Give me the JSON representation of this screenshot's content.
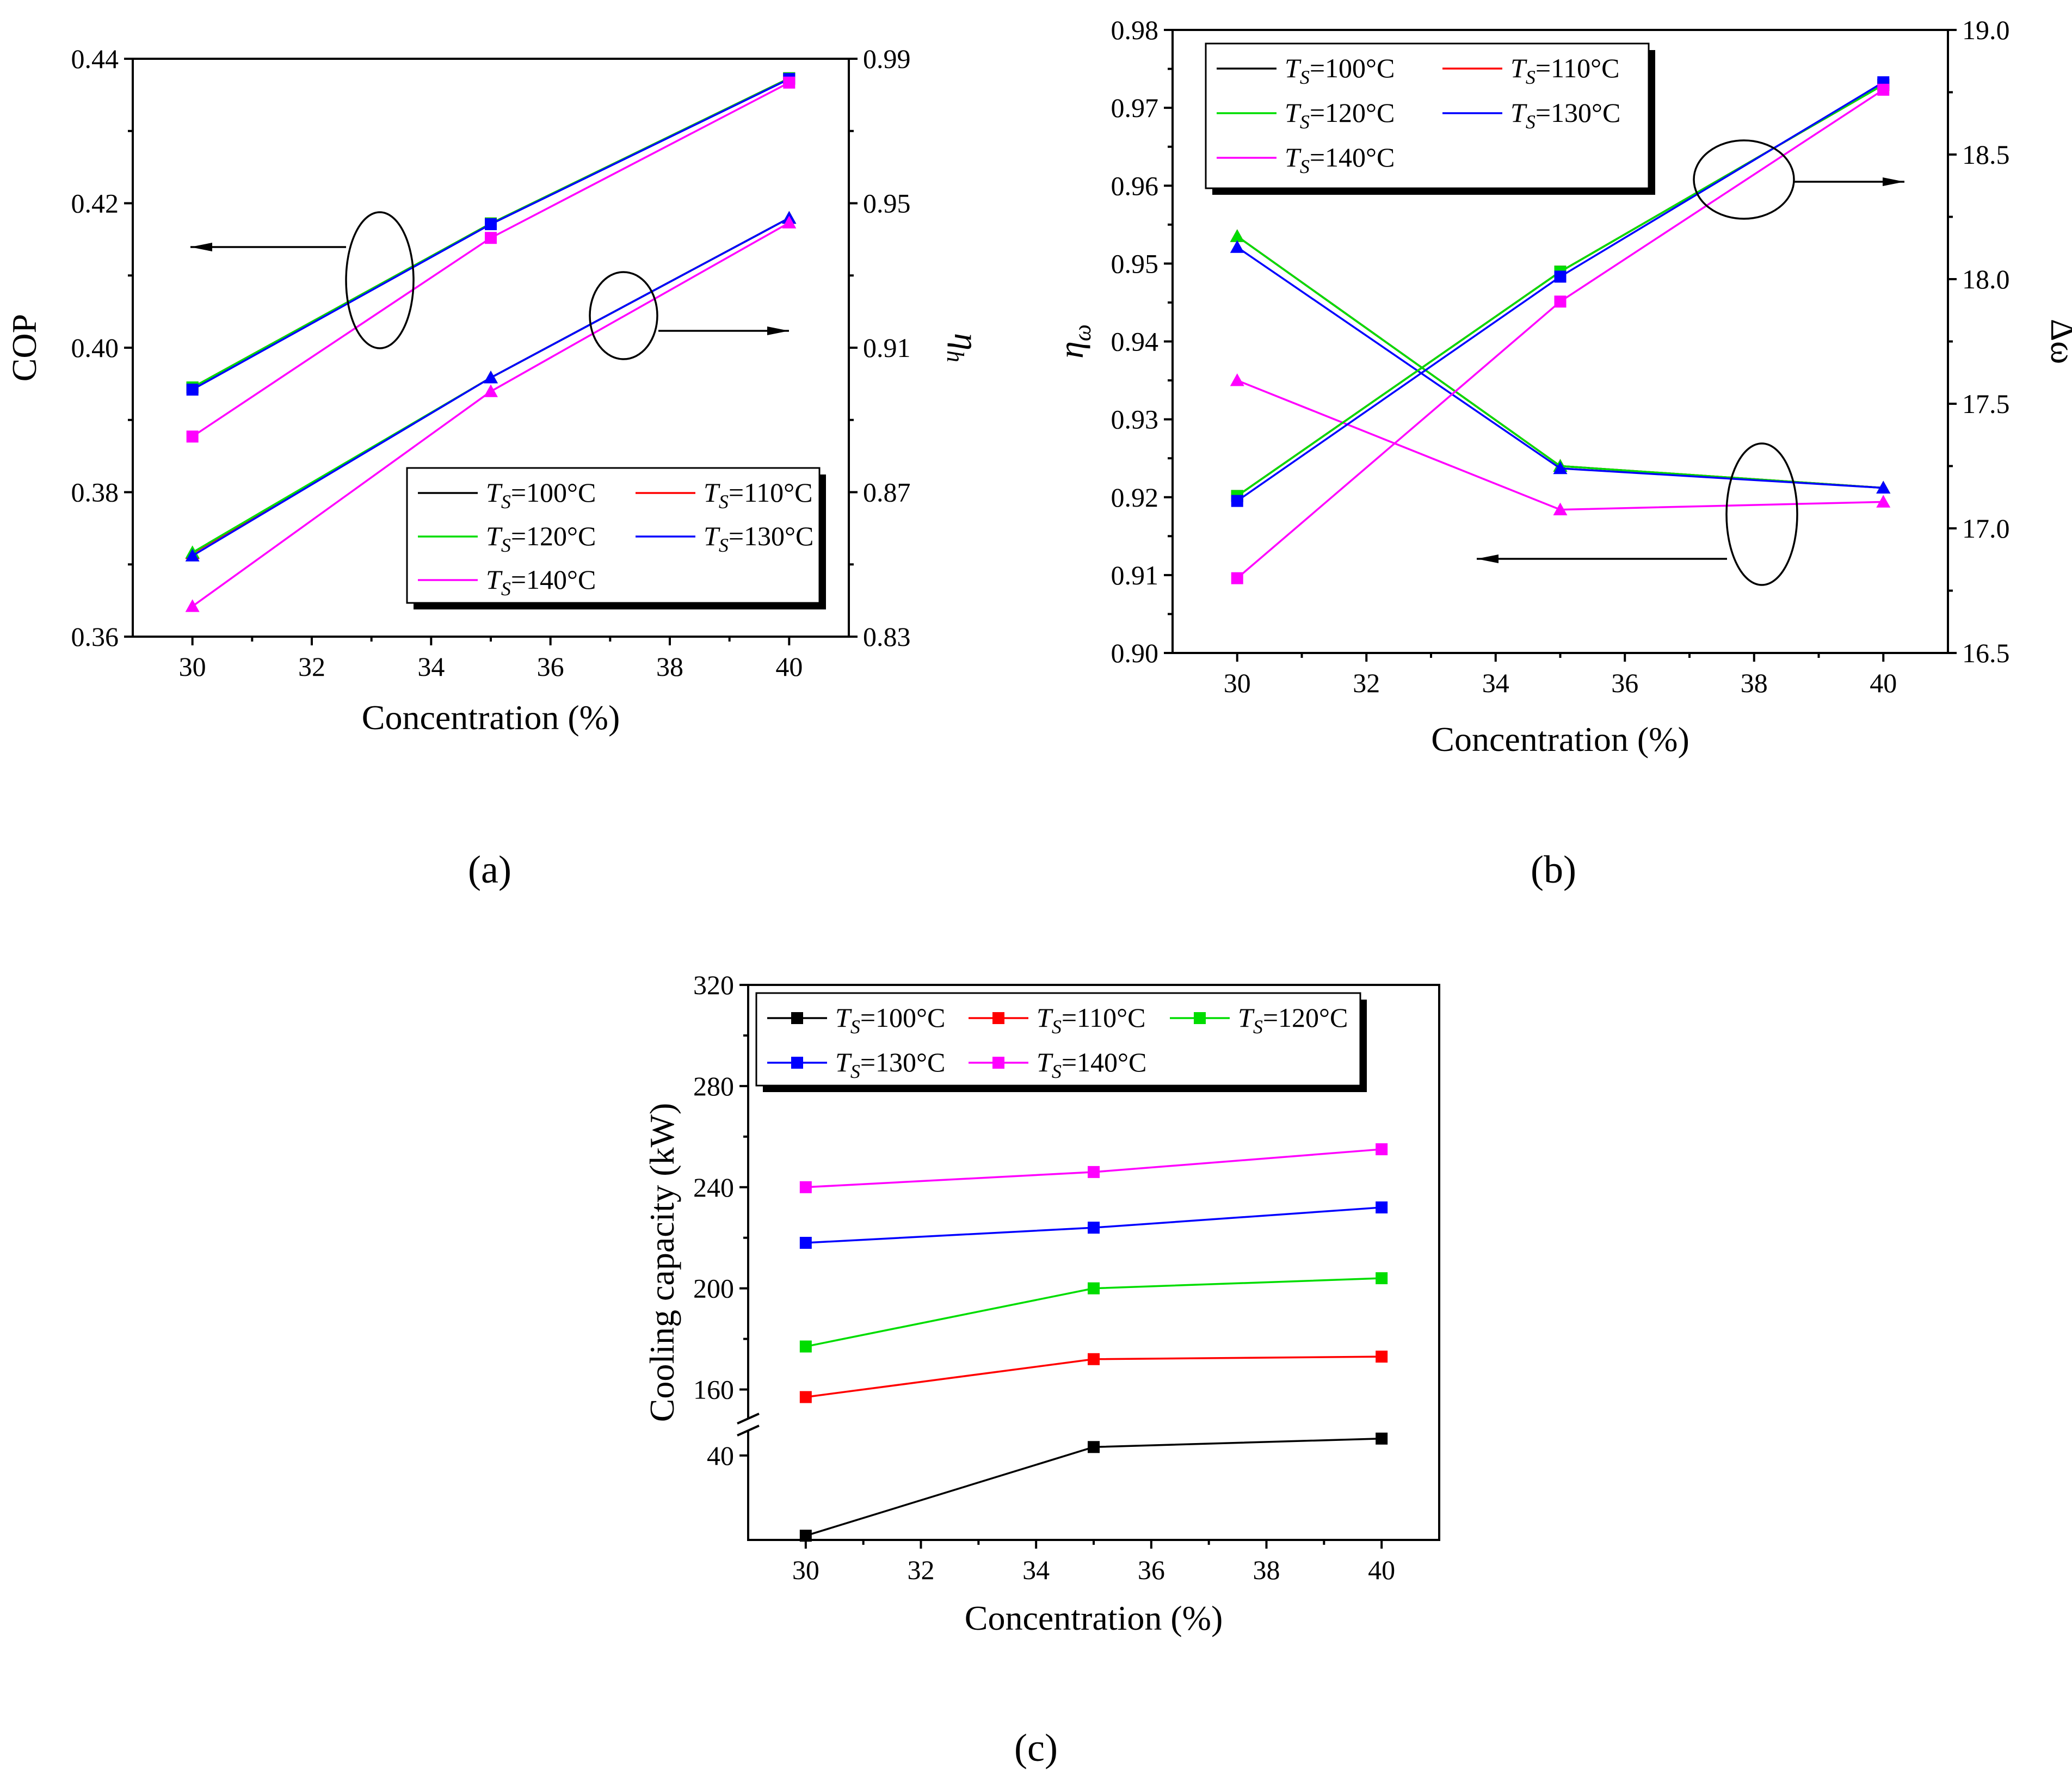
{
  "panel_labels": [
    "(a)",
    "(b)",
    "(c)"
  ],
  "chart_data": [
    {
      "type": "line",
      "panel": "(a)",
      "xlabel": "Concentration (%)",
      "ylabel": "COP",
      "y2label": "η_h",
      "xlim": [
        29,
        41
      ],
      "xticks": [
        "30",
        "32",
        "34",
        "36",
        "38",
        "40"
      ],
      "ylim": [
        0.36,
        0.44
      ],
      "yticks": [
        "0.36",
        "0.38",
        "0.40",
        "0.42",
        "0.44"
      ],
      "y2lim": [
        0.83,
        0.99
      ],
      "y2ticks": [
        "0.83",
        "0.87",
        "0.91",
        "0.95",
        "0.99"
      ],
      "legend_position": "bottom-right",
      "legend_entries": [
        "T_S=100°C",
        "T_S=110°C",
        "T_S=120°C",
        "T_S=130°C",
        "T_S=140°C"
      ],
      "x": [
        30,
        35,
        40
      ],
      "series": [
        {
          "name": "T_S=100°C COP",
          "axis": "left",
          "color": "#000000",
          "marker": "square",
          "values": [
            0.3945,
            0.4172,
            0.4373
          ]
        },
        {
          "name": "T_S=110°C COP",
          "axis": "left",
          "color": "#ff0000",
          "marker": "square",
          "values": [
            0.3945,
            0.4172,
            0.4373
          ]
        },
        {
          "name": "T_S=120°C COP",
          "axis": "left",
          "color": "#00dd00",
          "marker": "square",
          "values": [
            0.3945,
            0.4172,
            0.4373
          ]
        },
        {
          "name": "T_S=130°C COP",
          "axis": "left",
          "color": "#0000ff",
          "marker": "square",
          "values": [
            0.3942,
            0.4171,
            0.4372
          ]
        },
        {
          "name": "T_S=140°C COP",
          "axis": "left",
          "color": "#ff00ff",
          "marker": "square",
          "values": [
            0.3877,
            0.4152,
            0.4367
          ]
        },
        {
          "name": "T_S=100°C η_h",
          "axis": "right",
          "color": "#000000",
          "marker": "triangle",
          "values": [
            0.8531,
            0.9017,
            0.9459
          ]
        },
        {
          "name": "T_S=110°C η_h",
          "axis": "right",
          "color": "#ff0000",
          "marker": "triangle",
          "values": [
            0.8531,
            0.9017,
            0.9459
          ]
        },
        {
          "name": "T_S=120°C η_h",
          "axis": "right",
          "color": "#00dd00",
          "marker": "triangle",
          "values": [
            0.8533,
            0.9017,
            0.9459
          ]
        },
        {
          "name": "T_S=130°C η_h",
          "axis": "right",
          "color": "#0000ff",
          "marker": "triangle",
          "values": [
            0.8524,
            0.9017,
            0.9459
          ]
        },
        {
          "name": "T_S=140°C η_h",
          "axis": "right",
          "color": "#ff00ff",
          "marker": "triangle",
          "values": [
            0.8384,
            0.8979,
            0.9446
          ]
        }
      ]
    },
    {
      "type": "line",
      "panel": "(b)",
      "xlabel": "Concentration (%)",
      "ylabel": "η_ω",
      "y2label": "Δω",
      "xlim": [
        29,
        41
      ],
      "xticks": [
        "30",
        "32",
        "34",
        "36",
        "38",
        "40"
      ],
      "ylim": [
        0.9,
        0.98
      ],
      "yticks": [
        "0.90",
        "0.91",
        "0.92",
        "0.93",
        "0.94",
        "0.95",
        "0.96",
        "0.97",
        "0.98"
      ],
      "y2lim": [
        16.5,
        19.0
      ],
      "y2ticks": [
        "16.5",
        "17.0",
        "17.5",
        "18.0",
        "18.5",
        "19.0"
      ],
      "legend_position": "top-left",
      "legend_entries": [
        "T_S=100°C",
        "T_S=110°C",
        "T_S=120°C",
        "T_S=130°C",
        "T_S=140°C"
      ],
      "x": [
        30,
        35,
        40
      ],
      "series": [
        {
          "name": "T_S=100°C η_ω",
          "axis": "left",
          "color": "#000000",
          "marker": "triangle",
          "values": [
            0.9535,
            0.924,
            0.9212
          ]
        },
        {
          "name": "T_S=110°C η_ω",
          "axis": "left",
          "color": "#ff0000",
          "marker": "triangle",
          "values": [
            0.9535,
            0.924,
            0.9212
          ]
        },
        {
          "name": "T_S=120°C η_ω",
          "axis": "left",
          "color": "#00dd00",
          "marker": "triangle",
          "values": [
            0.9535,
            0.924,
            0.9212
          ]
        },
        {
          "name": "T_S=130°C η_ω",
          "axis": "left",
          "color": "#0000ff",
          "marker": "triangle",
          "values": [
            0.9521,
            0.9237,
            0.9212
          ]
        },
        {
          "name": "T_S=140°C η_ω",
          "axis": "left",
          "color": "#ff00ff",
          "marker": "triangle",
          "values": [
            0.935,
            0.9184,
            0.9194
          ]
        },
        {
          "name": "T_S=100°C Δω",
          "axis": "right",
          "color": "#000000",
          "marker": "square",
          "values": [
            17.13,
            18.03,
            18.78
          ]
        },
        {
          "name": "T_S=110°C Δω",
          "axis": "right",
          "color": "#ff0000",
          "marker": "square",
          "values": [
            17.13,
            18.03,
            18.78
          ]
        },
        {
          "name": "T_S=120°C Δω",
          "axis": "right",
          "color": "#00dd00",
          "marker": "square",
          "values": [
            17.13,
            18.03,
            18.78
          ]
        },
        {
          "name": "T_S=130°C Δω",
          "axis": "right",
          "color": "#0000ff",
          "marker": "square",
          "values": [
            17.11,
            18.01,
            18.79
          ]
        },
        {
          "name": "T_S=140°C Δω",
          "axis": "right",
          "color": "#ff00ff",
          "marker": "square",
          "values": [
            16.8,
            17.91,
            18.76
          ]
        }
      ]
    },
    {
      "type": "line",
      "panel": "(c)",
      "xlabel": "Concentration (%)",
      "ylabel": "Cooling capacity (kW)",
      "xlim": [
        29,
        41
      ],
      "xticks": [
        "30",
        "32",
        "34",
        "36",
        "38",
        "40"
      ],
      "y_broken": true,
      "ylim_lower": [
        20,
        45
      ],
      "yticks_lower": [
        "40"
      ],
      "ylim_upper": [
        150,
        320
      ],
      "yticks_upper": [
        "160",
        "200",
        "240",
        "280",
        "320"
      ],
      "legend_position": "top-left",
      "legend_entries": [
        "T_S=100°C",
        "T_S=110°C",
        "T_S=120°C",
        "T_S=130°C",
        "T_S=140°C"
      ],
      "x": [
        30,
        35,
        40
      ],
      "series": [
        {
          "name": "T_S=100°C",
          "color": "#000000",
          "marker": "square",
          "values": [
            21,
            42,
            44
          ]
        },
        {
          "name": "T_S=110°C",
          "color": "#ff0000",
          "marker": "square",
          "values": [
            157,
            172,
            173
          ]
        },
        {
          "name": "T_S=120°C",
          "color": "#00dd00",
          "marker": "square",
          "values": [
            177,
            200,
            204
          ]
        },
        {
          "name": "T_S=130°C",
          "color": "#0000ff",
          "marker": "square",
          "values": [
            218,
            224,
            232
          ]
        },
        {
          "name": "T_S=140°C",
          "color": "#ff00ff",
          "marker": "square",
          "values": [
            240,
            246,
            255
          ]
        }
      ]
    }
  ]
}
